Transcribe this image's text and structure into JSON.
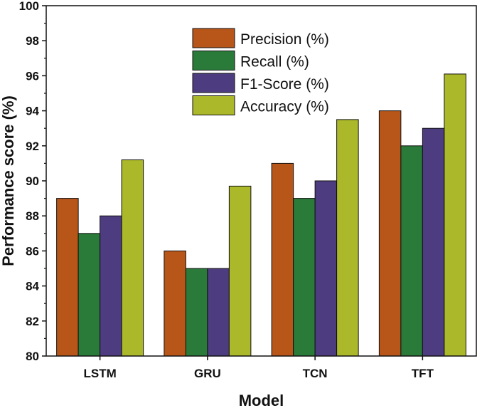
{
  "chart_data": {
    "type": "bar",
    "title": "",
    "xlabel": "Model",
    "ylabel": "Performance score (%)",
    "ylim": [
      80,
      100
    ],
    "yticks": [
      80,
      82,
      84,
      86,
      88,
      90,
      92,
      94,
      96,
      98,
      100
    ],
    "categories": [
      "LSTM",
      "GRU",
      "TCN",
      "TFT"
    ],
    "series": [
      {
        "name": "Precision (%)",
        "color": "#b85619",
        "values": [
          89.0,
          86.0,
          91.0,
          94.0
        ]
      },
      {
        "name": "Recall (%)",
        "color": "#2a7a3a",
        "values": [
          87.0,
          85.0,
          89.0,
          92.0
        ]
      },
      {
        "name": "F1-Score (%)",
        "color": "#4e3c80",
        "values": [
          88.0,
          85.0,
          90.0,
          93.0
        ]
      },
      {
        "name": "Accuracy (%)",
        "color": "#abb82a",
        "values": [
          91.2,
          89.7,
          93.5,
          96.1
        ]
      }
    ],
    "legend_position": "top-center",
    "grid": false
  }
}
